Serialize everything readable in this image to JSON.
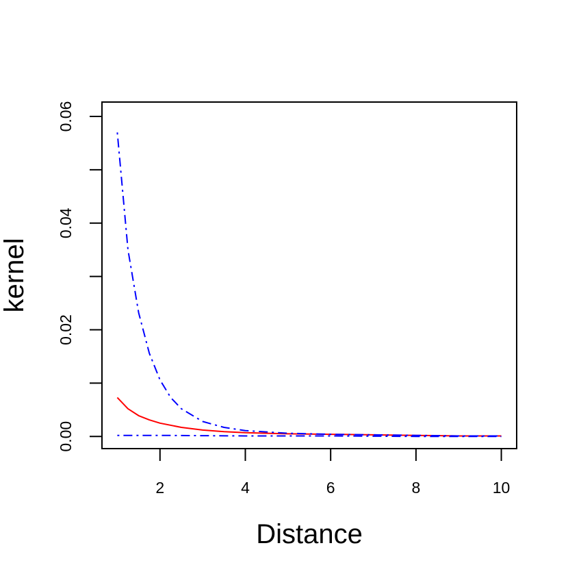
{
  "chart_data": {
    "type": "line",
    "title": "",
    "xlabel": "Distance",
    "ylabel": "kernel",
    "xlim": [
      0.64,
      10.36
    ],
    "ylim": [
      -0.00228,
      0.0627
    ],
    "x_ticks": [
      2,
      4,
      6,
      8,
      10
    ],
    "x_tick_labels": [
      "2",
      "4",
      "6",
      "8",
      "10"
    ],
    "y_ticks": [
      0,
      0.01,
      0.02,
      0.03,
      0.04,
      0.05,
      0.06
    ],
    "y_tick_labels": [
      "0.00",
      "",
      "0.02",
      "",
      "0.04",
      "",
      "0.06"
    ],
    "grid": false,
    "legend": null,
    "series": [
      {
        "color": "#ff0000",
        "dash": "solid",
        "x": [
          1,
          1.25,
          1.5,
          1.75,
          2,
          2.5,
          3,
          3.5,
          4,
          5,
          6,
          7,
          8,
          9,
          10
        ],
        "values": [
          0.0073,
          0.0052,
          0.0039,
          0.0031,
          0.0025,
          0.0017,
          0.0012,
          0.0009,
          0.0007,
          0.0005,
          0.0004,
          0.0003,
          0.0002,
          0.0001,
          0.0001
        ]
      },
      {
        "color": "#0000ff",
        "dash": "dotdash",
        "x": [
          1,
          1.25,
          1.5,
          1.75,
          2,
          2.25,
          2.5,
          3,
          3.5,
          4,
          5,
          6,
          7,
          8,
          9,
          10
        ],
        "values": [
          0.057,
          0.035,
          0.0232,
          0.0156,
          0.0106,
          0.0073,
          0.0052,
          0.0028,
          0.0017,
          0.0011,
          0.0006,
          0.0004,
          0.0003,
          0.0002,
          0.0001,
          0.0001
        ]
      },
      {
        "color": "#0000ff",
        "dash": "dotdash",
        "x": [
          1,
          2,
          4,
          6,
          8,
          10
        ],
        "values": [
          0.0002,
          0.0002,
          0.0001,
          0.0001,
          0.0,
          0.0
        ]
      }
    ]
  }
}
